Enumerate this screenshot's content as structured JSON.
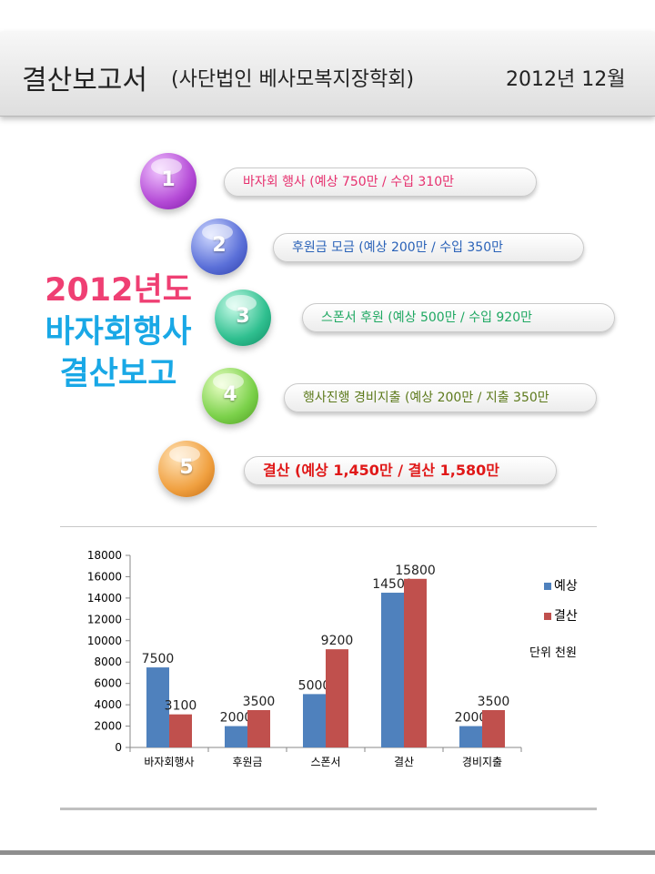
{
  "header": {
    "title": "결산보고서",
    "subtitle": "(사단법인 베사모복지장학회)",
    "date": "2012년 12월"
  },
  "side_title": {
    "line1": "2012년도",
    "line2": "바자회행사",
    "line3": "결산보고"
  },
  "steps": [
    {
      "number": "1",
      "text": "바자회 행사  (예상 750만 / 수입 310만",
      "color": "#e6306e"
    },
    {
      "number": "2",
      "text": "후원금 모금  (예상 200만 / 수입 350만",
      "color": "#2a62b8"
    },
    {
      "number": "3",
      "text": "스폰서 후원  (예상 500만 / 수입 920만",
      "color": "#1fa862"
    },
    {
      "number": "4",
      "text": "행사진행 경비지출 (예상 200만 / 지출 350만",
      "color": "#5d7a1c"
    },
    {
      "number": "5",
      "text": "결산  (예상 1,450만 / 결산 1,580만",
      "color": "#e01818"
    }
  ],
  "chart_data": {
    "type": "bar",
    "categories": [
      "바자회행사",
      "후원금",
      "스폰서",
      "결산",
      "경비지출"
    ],
    "series": [
      {
        "name": "예상",
        "values": [
          7500,
          2000,
          5000,
          14500,
          2000
        ],
        "color": "#4f81bd"
      },
      {
        "name": "결산",
        "values": [
          3100,
          3500,
          9200,
          15800,
          3500
        ],
        "color": "#c0504d"
      }
    ],
    "ylim": [
      0,
      18000
    ],
    "yticks": [
      0,
      2000,
      4000,
      6000,
      8000,
      10000,
      12000,
      14000,
      16000,
      18000
    ],
    "unit_note": "단위 천원",
    "legend_position": "right",
    "grid": false
  }
}
